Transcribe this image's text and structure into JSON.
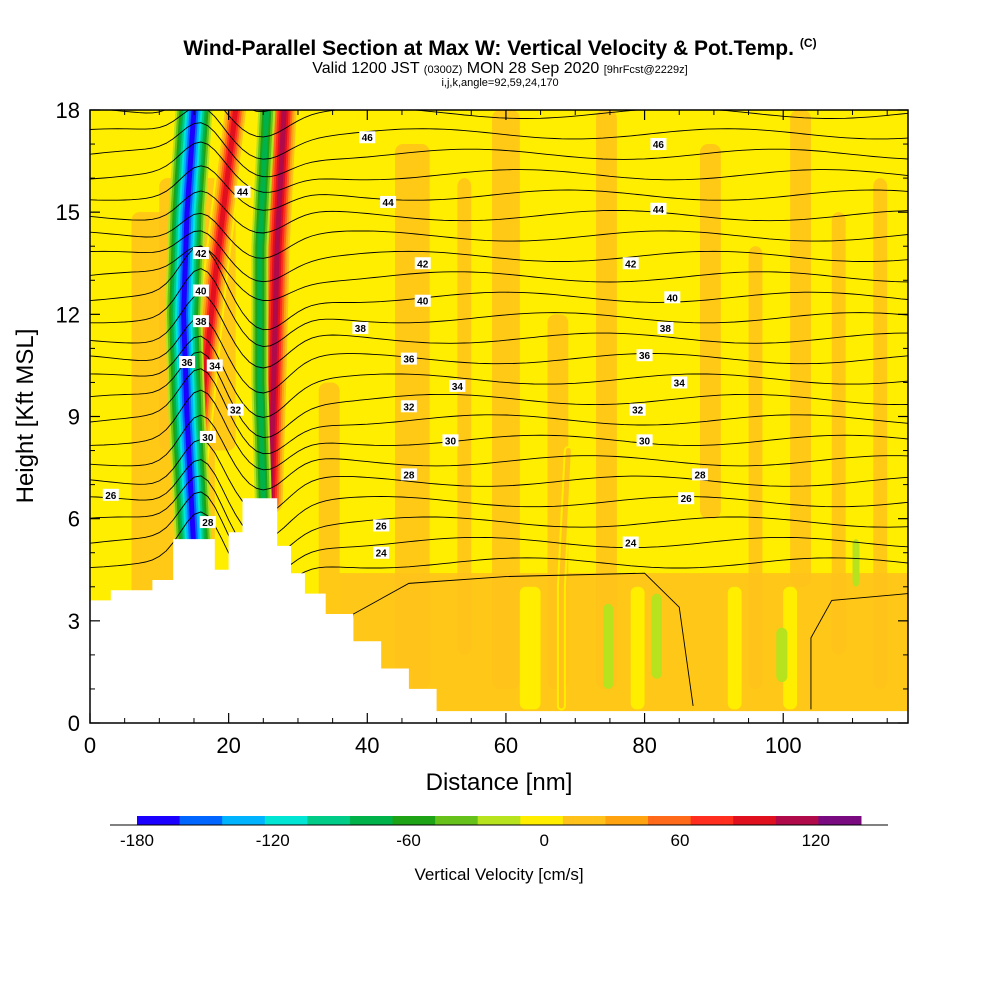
{
  "header": {
    "title": "Wind-Parallel Section at Max W: Vertical Velocity & Pot.Temp.",
    "copyright": "(C)",
    "valid_prefix": "Valid 1200 JST",
    "valid_zulu": "(0300Z)",
    "valid_date": "MON 28 Sep 2020",
    "forecast": "[9hrFcst@2229z]",
    "indices": "i,j,k,angle=92,59,24,170"
  },
  "colors": {
    "background": "#ffee00",
    "terrain": "#ffffff",
    "contour": "#000000",
    "palette": [
      "#1b00ff",
      "#0066ff",
      "#00b3ff",
      "#00e5d4",
      "#00cc88",
      "#00b24a",
      "#1ea316",
      "#66c21a",
      "#b7e21e",
      "#ffee00",
      "#ffc21a",
      "#ffa310",
      "#ff6a1a",
      "#ff2e1e",
      "#e0101e",
      "#b00a4a",
      "#7a0a80"
    ]
  },
  "chart_data": {
    "type": "heatmap",
    "xlabel": "Distance [nm]",
    "ylabel": "Height [Kft MSL]",
    "xlim": [
      0,
      118
    ],
    "ylim": [
      0,
      18
    ],
    "xticks": [
      0,
      20,
      40,
      60,
      80,
      100
    ],
    "yticks": [
      0,
      3,
      6,
      9,
      12,
      15,
      18
    ],
    "colorbar": {
      "label": "Vertical Velocity [cm/s]",
      "range": [
        -180,
        140
      ],
      "step": 20,
      "tick_values": [
        -180,
        -120,
        -60,
        0,
        60,
        120
      ],
      "tick_labels": [
        "-180",
        "-120",
        "-60",
        "0",
        "60",
        "120"
      ]
    },
    "terrain_profile": [
      [
        0,
        3.6
      ],
      [
        3,
        3.9
      ],
      [
        9,
        4.2
      ],
      [
        12,
        5.4
      ],
      [
        15,
        5.4
      ],
      [
        18,
        4.5
      ],
      [
        20,
        5.6
      ],
      [
        22,
        6.6
      ],
      [
        25,
        6.6
      ],
      [
        27,
        5.2
      ],
      [
        29,
        4.4
      ],
      [
        31,
        3.8
      ],
      [
        34,
        3.2
      ],
      [
        38,
        2.4
      ],
      [
        42,
        1.6
      ],
      [
        46,
        1.0
      ],
      [
        50,
        0.35
      ],
      [
        118,
        0.35
      ]
    ],
    "vertical_velocity_features": [
      {
        "name": "updraft",
        "x": [
          14,
          16,
          18,
          21
        ],
        "y": [
          5.5,
          9,
          13,
          18
        ],
        "value": 120
      },
      {
        "name": "downdraft",
        "x": [
          15,
          14,
          13.5,
          14,
          15
        ],
        "y": [
          5,
          9,
          12,
          15,
          18
        ],
        "value": -180
      },
      {
        "name": "updraft",
        "x": [
          26,
          26.5,
          27,
          28
        ],
        "y": [
          6.5,
          10,
          14,
          18
        ],
        "value": 140
      },
      {
        "name": "downdraft",
        "x": [
          25,
          24.5,
          24.5,
          25.5
        ],
        "y": [
          6.5,
          10,
          14,
          18
        ],
        "value": -80
      },
      {
        "name": "updraft",
        "x": [
          68,
          68,
          69
        ],
        "y": [
          0.5,
          4,
          8
        ],
        "value": 40
      }
    ],
    "potential_temperature": {
      "units": "C",
      "isotherm_values": [
        24,
        26,
        28,
        30,
        32,
        34,
        36,
        38,
        40,
        42,
        44,
        46
      ],
      "isotherm_heights": [
        {
          "value": 24,
          "label_positions": [
            [
              42,
              5.0
            ],
            [
              78,
              5.3
            ]
          ]
        },
        {
          "value": 26,
          "label_positions": [
            [
              3,
              6.7
            ],
            [
              42,
              5.8
            ],
            [
              86,
              6.6
            ]
          ]
        },
        {
          "value": 28,
          "label_positions": [
            [
              17,
              5.9
            ],
            [
              46,
              7.3
            ],
            [
              88,
              7.3
            ]
          ]
        },
        {
          "value": 30,
          "label_positions": [
            [
              17,
              8.4
            ],
            [
              52,
              8.3
            ],
            [
              80,
              8.3
            ]
          ]
        },
        {
          "value": 32,
          "label_positions": [
            [
              21,
              9.2
            ],
            [
              46,
              9.3
            ],
            [
              79,
              9.2
            ]
          ]
        },
        {
          "value": 34,
          "label_positions": [
            [
              18,
              10.5
            ],
            [
              53,
              9.9
            ],
            [
              85,
              10.0
            ]
          ]
        },
        {
          "value": 36,
          "label_positions": [
            [
              14,
              10.6
            ],
            [
              46,
              10.7
            ],
            [
              80,
              10.8
            ]
          ]
        },
        {
          "value": 38,
          "label_positions": [
            [
              16,
              11.8
            ],
            [
              39,
              11.6
            ],
            [
              83,
              11.6
            ]
          ]
        },
        {
          "value": 40,
          "label_positions": [
            [
              16,
              12.7
            ],
            [
              48,
              12.4
            ],
            [
              84,
              12.5
            ]
          ]
        },
        {
          "value": 42,
          "label_positions": [
            [
              16,
              13.8
            ],
            [
              48,
              13.5
            ],
            [
              78,
              13.5
            ]
          ]
        },
        {
          "value": 44,
          "label_positions": [
            [
              22,
              15.6
            ],
            [
              43,
              15.3
            ],
            [
              82,
              15.1
            ]
          ]
        },
        {
          "value": 46,
          "label_positions": [
            [
              40,
              17.2
            ],
            [
              82,
              17.0
            ]
          ]
        }
      ]
    }
  }
}
